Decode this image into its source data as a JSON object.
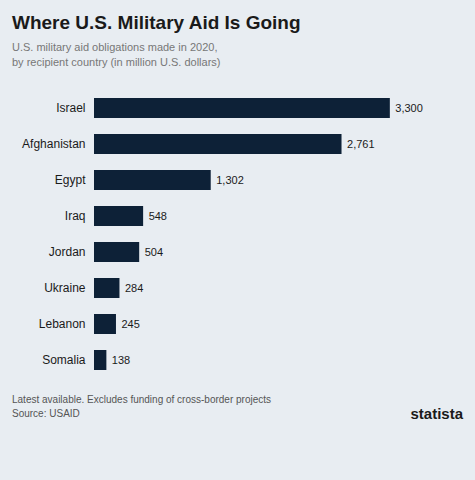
{
  "chart_data": {
    "type": "bar",
    "orientation": "horizontal",
    "title": "Where U.S. Military Aid Is Going",
    "subtitle": "U.S. military aid obligations made in 2020,\nby recipient country (in million U.S. dollars)",
    "categories": [
      "Israel",
      "Afghanistan",
      "Egypt",
      "Iraq",
      "Jordan",
      "Ukraine",
      "Lebanon",
      "Somalia"
    ],
    "values": [
      3300,
      2761,
      1302,
      548,
      504,
      284,
      245,
      138
    ],
    "value_labels": [
      "3,300",
      "2,761",
      "1,302",
      "548",
      "504",
      "284",
      "245",
      "138"
    ],
    "data_labels": true,
    "color": "#0d2137",
    "xlim": [
      0,
      3960
    ],
    "tick_labels": "y",
    "grid": false,
    "annotations": [
      "Latest available. Excludes funding of cross-border projects",
      "Source: USAID",
      "statista"
    ]
  }
}
